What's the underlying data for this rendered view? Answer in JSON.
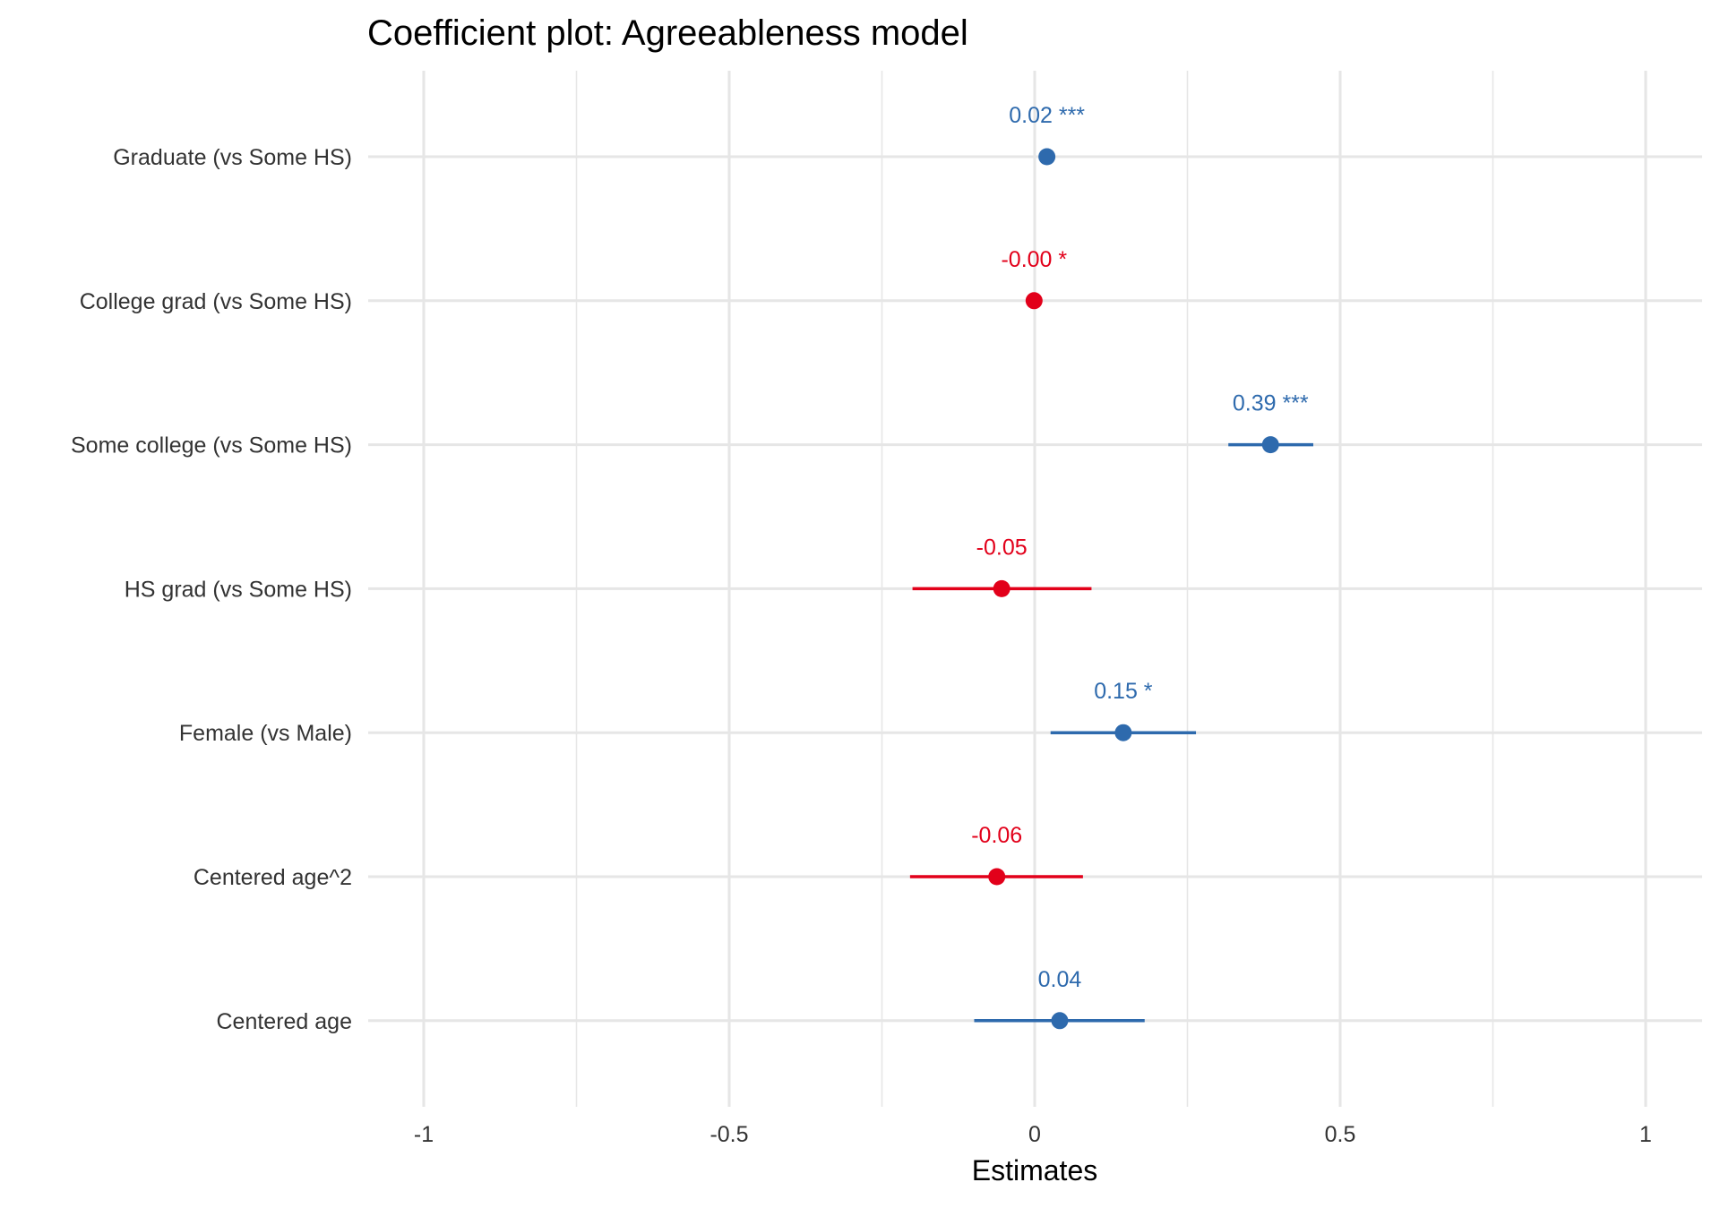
{
  "chart_data": {
    "type": "scatter",
    "subtype": "coefficient-plot",
    "title": "Coefficient plot: Agreeableness model",
    "xlabel": "Estimates",
    "ylabel": "",
    "xlim": [
      -1.1,
      1.1
    ],
    "xticks": [
      -1,
      -0.5,
      0,
      0.5,
      1
    ],
    "xtick_labels": [
      "-1",
      "-0.5",
      "0",
      "0.5",
      "1"
    ],
    "grid": true,
    "colors": {
      "positive": "#2e6aad",
      "negative": "#e2001a",
      "grid": "#e6e6e6",
      "text": "#333333"
    },
    "terms": [
      {
        "label": "Graduate (vs Some HS)",
        "estimate": 0.02,
        "ci": [
          0.015,
          0.025
        ],
        "value_label": "0.02 ***"
      },
      {
        "label": "College grad (vs Some HS)",
        "estimate": -0.001,
        "ci": [
          -0.004,
          0.002
        ],
        "value_label": "-0.00 *"
      },
      {
        "label": "Some college (vs Some HS)",
        "estimate": 0.386,
        "ci": [
          0.317,
          0.456
        ],
        "value_label": "0.39 ***"
      },
      {
        "label": "HS grad (vs Some HS)",
        "estimate": -0.054,
        "ci": [
          -0.2,
          0.093
        ],
        "value_label": "-0.05"
      },
      {
        "label": "Female (vs Male)",
        "estimate": 0.145,
        "ci": [
          0.026,
          0.264
        ],
        "value_label": "0.15 *"
      },
      {
        "label": "Centered age^2",
        "estimate": -0.062,
        "ci": [
          -0.204,
          0.079
        ],
        "value_label": "-0.06"
      },
      {
        "label": "Centered age",
        "estimate": 0.041,
        "ci": [
          -0.099,
          0.18
        ],
        "value_label": "0.04"
      }
    ]
  }
}
